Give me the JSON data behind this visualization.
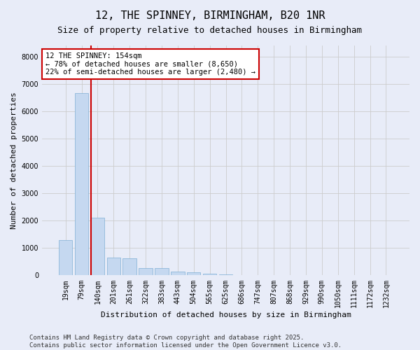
{
  "title": "12, THE SPINNEY, BIRMINGHAM, B20 1NR",
  "subtitle": "Size of property relative to detached houses in Birmingham",
  "xlabel": "Distribution of detached houses by size in Birmingham",
  "ylabel": "Number of detached properties",
  "categories": [
    "19sqm",
    "79sqm",
    "140sqm",
    "201sqm",
    "261sqm",
    "322sqm",
    "383sqm",
    "443sqm",
    "504sqm",
    "565sqm",
    "625sqm",
    "686sqm",
    "747sqm",
    "807sqm",
    "868sqm",
    "929sqm",
    "990sqm",
    "1050sqm",
    "1111sqm",
    "1172sqm",
    "1232sqm"
  ],
  "values": [
    1300,
    6650,
    2100,
    650,
    620,
    270,
    270,
    130,
    110,
    70,
    40,
    10,
    5,
    5,
    5,
    3,
    3,
    2,
    2,
    1,
    1
  ],
  "bar_color": "#c5d8f0",
  "bar_edgecolor": "#7fafd4",
  "vline_x": 2.0,
  "vline_color": "#cc0000",
  "annotation_title": "12 THE SPINNEY: 154sqm",
  "annotation_line1": "← 78% of detached houses are smaller (8,650)",
  "annotation_line2": "22% of semi-detached houses are larger (2,480) →",
  "annotation_box_color": "#cc0000",
  "annotation_text_color": "#000000",
  "annotation_bg_color": "#ffffff",
  "ylim": [
    0,
    8400
  ],
  "yticks": [
    0,
    1000,
    2000,
    3000,
    4000,
    5000,
    6000,
    7000,
    8000
  ],
  "grid_color": "#cccccc",
  "bg_color": "#e8ecf8",
  "plot_bg_color": "#e8ecf8",
  "footer_line1": "Contains HM Land Registry data © Crown copyright and database right 2025.",
  "footer_line2": "Contains public sector information licensed under the Open Government Licence v3.0.",
  "title_fontsize": 11,
  "subtitle_fontsize": 9,
  "axis_label_fontsize": 8,
  "tick_fontsize": 7,
  "annotation_fontsize": 7.5,
  "footer_fontsize": 6.5
}
